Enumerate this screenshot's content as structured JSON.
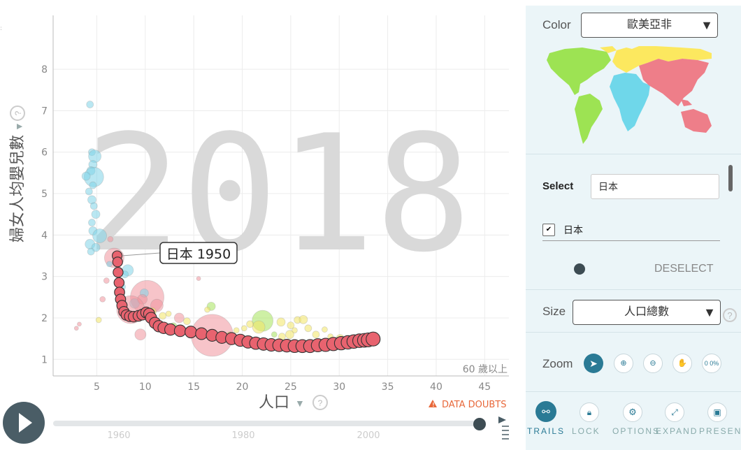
{
  "chart_data": {
    "type": "scatter",
    "watermark_year": "2018",
    "xlabel": "人口",
    "ylabel": "婦女人均嬰兒數",
    "x_ticks": [
      5,
      10,
      15,
      20,
      25,
      30,
      35,
      40,
      45
    ],
    "y_ticks": [
      1,
      2,
      3,
      4,
      5,
      6,
      7,
      8
    ],
    "xlim": [
      0.5,
      47.5
    ],
    "ylim": [
      0.6,
      9.3
    ],
    "grid": true,
    "corner_note": "60 歲以上",
    "selected_label": "日本 1950",
    "selected_trail": {
      "name": "日本",
      "color": "#e8636f",
      "points": [
        [
          7.1,
          3.5
        ],
        [
          7.15,
          3.35
        ],
        [
          7.2,
          3.1
        ],
        [
          7.3,
          2.85
        ],
        [
          7.35,
          2.62
        ],
        [
          7.45,
          2.45
        ],
        [
          7.6,
          2.3
        ],
        [
          7.8,
          2.15
        ],
        [
          8.05,
          2.07
        ],
        [
          8.4,
          2.04
        ],
        [
          8.8,
          2.03
        ],
        [
          9.3,
          2.05
        ],
        [
          9.7,
          2.08
        ],
        [
          10.1,
          2.13
        ],
        [
          10.4,
          2.1
        ],
        [
          10.6,
          2.0
        ],
        [
          11.0,
          1.88
        ],
        [
          11.4,
          1.8
        ],
        [
          11.9,
          1.76
        ],
        [
          12.6,
          1.72
        ],
        [
          13.6,
          1.69
        ],
        [
          14.7,
          1.66
        ],
        [
          15.8,
          1.62
        ],
        [
          16.9,
          1.58
        ],
        [
          17.9,
          1.53
        ],
        [
          18.9,
          1.5
        ],
        [
          19.8,
          1.46
        ],
        [
          20.6,
          1.42
        ],
        [
          21.4,
          1.39
        ],
        [
          22.2,
          1.37
        ],
        [
          23.0,
          1.35
        ],
        [
          23.8,
          1.34
        ],
        [
          24.6,
          1.33
        ],
        [
          25.4,
          1.32
        ],
        [
          26.2,
          1.32
        ],
        [
          27.0,
          1.32
        ],
        [
          27.8,
          1.34
        ],
        [
          28.6,
          1.35
        ],
        [
          29.4,
          1.37
        ],
        [
          30.2,
          1.39
        ],
        [
          30.9,
          1.41
        ],
        [
          31.5,
          1.43
        ],
        [
          32.1,
          1.45
        ],
        [
          32.6,
          1.46
        ],
        [
          33.0,
          1.47
        ],
        [
          33.5,
          1.49
        ]
      ]
    },
    "others": [
      {
        "x": 4.3,
        "y": 7.15,
        "c": "blue",
        "s": 5
      },
      {
        "x": 4.5,
        "y": 6.0,
        "c": "blue",
        "s": 5
      },
      {
        "x": 4.8,
        "y": 5.9,
        "c": "blue",
        "s": 9
      },
      {
        "x": 4.6,
        "y": 5.7,
        "c": "blue",
        "s": 6
      },
      {
        "x": 4.4,
        "y": 5.55,
        "c": "blue",
        "s": 6
      },
      {
        "x": 4.7,
        "y": 5.4,
        "c": "blue",
        "s": 14
      },
      {
        "x": 3.9,
        "y": 5.42,
        "c": "blue",
        "s": 6
      },
      {
        "x": 4.6,
        "y": 5.2,
        "c": "blue",
        "s": 5
      },
      {
        "x": 4.2,
        "y": 5.05,
        "c": "blue",
        "s": 5
      },
      {
        "x": 4.5,
        "y": 4.85,
        "c": "blue",
        "s": 6
      },
      {
        "x": 4.7,
        "y": 4.7,
        "c": "blue",
        "s": 5
      },
      {
        "x": 4.9,
        "y": 4.5,
        "c": "blue",
        "s": 6
      },
      {
        "x": 4.5,
        "y": 4.3,
        "c": "blue",
        "s": 5
      },
      {
        "x": 4.6,
        "y": 4.1,
        "c": "blue",
        "s": 6
      },
      {
        "x": 5.3,
        "y": 3.98,
        "c": "blue",
        "s": 10
      },
      {
        "x": 4.3,
        "y": 3.78,
        "c": "blue",
        "s": 7
      },
      {
        "x": 4.9,
        "y": 3.7,
        "c": "blue",
        "s": 6
      },
      {
        "x": 4.4,
        "y": 3.6,
        "c": "blue",
        "s": 5
      },
      {
        "x": 6.8,
        "y": 3.45,
        "c": "pink",
        "s": 14
      },
      {
        "x": 6.3,
        "y": 3.3,
        "c": "blue",
        "s": 4
      },
      {
        "x": 8.2,
        "y": 3.15,
        "c": "blue",
        "s": 8
      },
      {
        "x": 7.9,
        "y": 3.05,
        "c": "blue",
        "s": 5
      },
      {
        "x": 6.0,
        "y": 2.9,
        "c": "pink",
        "s": 4
      },
      {
        "x": 7.6,
        "y": 2.75,
        "c": "blue",
        "s": 5
      },
      {
        "x": 10.2,
        "y": 2.5,
        "c": "pink",
        "s": 24
      },
      {
        "x": 9.9,
        "y": 2.6,
        "c": "blue",
        "s": 6
      },
      {
        "x": 8.9,
        "y": 2.35,
        "c": "blue",
        "s": 7
      },
      {
        "x": 9.7,
        "y": 2.45,
        "c": "pink",
        "s": 7
      },
      {
        "x": 11.2,
        "y": 2.3,
        "c": "pink",
        "s": 9
      },
      {
        "x": 8.5,
        "y": 2.2,
        "c": "pink",
        "s": 20
      },
      {
        "x": 10.7,
        "y": 2.15,
        "c": "yellow",
        "s": 6
      },
      {
        "x": 11.8,
        "y": 2.05,
        "c": "yellow",
        "s": 5
      },
      {
        "x": 12.4,
        "y": 2.1,
        "c": "yellow",
        "s": 4
      },
      {
        "x": 13.5,
        "y": 2.0,
        "c": "pink",
        "s": 7
      },
      {
        "x": 12.9,
        "y": 1.8,
        "c": "green",
        "s": 5
      },
      {
        "x": 14.3,
        "y": 1.92,
        "c": "yellow",
        "s": 5
      },
      {
        "x": 9.5,
        "y": 1.6,
        "c": "pink",
        "s": 8
      },
      {
        "x": 5.6,
        "y": 2.45,
        "c": "pink",
        "s": 4
      },
      {
        "x": 5.2,
        "y": 1.95,
        "c": "yellow",
        "s": 4
      },
      {
        "x": 3.2,
        "y": 1.85,
        "c": "pink",
        "s": 3
      },
      {
        "x": 2.9,
        "y": 1.75,
        "c": "pink",
        "s": 3
      },
      {
        "x": 16.9,
        "y": 1.58,
        "c": "pink",
        "s": 30
      },
      {
        "x": 16.8,
        "y": 2.28,
        "c": "green",
        "s": 6
      },
      {
        "x": 16.4,
        "y": 2.2,
        "c": "yellow",
        "s": 4
      },
      {
        "x": 22.1,
        "y": 1.93,
        "c": "green",
        "s": 15
      },
      {
        "x": 21.7,
        "y": 1.78,
        "c": "yellow",
        "s": 9
      },
      {
        "x": 20.8,
        "y": 1.85,
        "c": "yellow",
        "s": 5
      },
      {
        "x": 20.2,
        "y": 1.75,
        "c": "yellow",
        "s": 4
      },
      {
        "x": 24.0,
        "y": 1.9,
        "c": "yellow",
        "s": 6
      },
      {
        "x": 25.0,
        "y": 1.82,
        "c": "yellow",
        "s": 5
      },
      {
        "x": 25.7,
        "y": 1.95,
        "c": "yellow",
        "s": 5
      },
      {
        "x": 26.3,
        "y": 1.96,
        "c": "yellow",
        "s": 6
      },
      {
        "x": 25.4,
        "y": 1.7,
        "c": "yellow",
        "s": 4
      },
      {
        "x": 24.9,
        "y": 1.6,
        "c": "yellow",
        "s": 6
      },
      {
        "x": 24.1,
        "y": 1.55,
        "c": "yellow",
        "s": 5
      },
      {
        "x": 23.3,
        "y": 1.6,
        "c": "green",
        "s": 4
      },
      {
        "x": 26.8,
        "y": 1.75,
        "c": "yellow",
        "s": 5
      },
      {
        "x": 27.6,
        "y": 1.6,
        "c": "yellow",
        "s": 5
      },
      {
        "x": 28.5,
        "y": 1.72,
        "c": "yellow",
        "s": 4
      },
      {
        "x": 29.1,
        "y": 1.55,
        "c": "yellow",
        "s": 4
      },
      {
        "x": 30.1,
        "y": 1.5,
        "c": "yellow",
        "s": 6
      },
      {
        "x": 19.4,
        "y": 1.7,
        "c": "yellow",
        "s": 4
      },
      {
        "x": 18.7,
        "y": 1.6,
        "c": "yellow",
        "s": 4
      },
      {
        "x": 15.5,
        "y": 2.95,
        "c": "pink",
        "s": 3
      },
      {
        "x": 6.4,
        "y": 3.9,
        "c": "pink",
        "s": 4
      }
    ]
  },
  "legend_colors": {
    "blue": "#7fd3e8",
    "pink": "#f1949c",
    "yellow": "#f3e565",
    "green": "#a6e35b"
  },
  "bottom": {
    "data_doubts": "DATA DOUBTS",
    "timeline_years": [
      "1960",
      "1980",
      "2000"
    ],
    "play_button": "play"
  },
  "panel": {
    "color_label": "Color",
    "color_value": "歐美亞非",
    "select_label": "Select",
    "select_input": "日本",
    "selected_country": "日本",
    "deselect": "DESELECT",
    "size_label": "Size",
    "size_value": "人口總數",
    "zoom_label": "Zoom",
    "zoom_pct": "0 0%",
    "dock": [
      "TRAILS",
      "LOCK",
      "OPTIONS",
      "EXPAND",
      "PRESENT"
    ]
  },
  "map_colors": {
    "americas": "#9de353",
    "europe": "#fce85f",
    "africa": "#6fd7ea",
    "asia": "#ee7e89"
  }
}
